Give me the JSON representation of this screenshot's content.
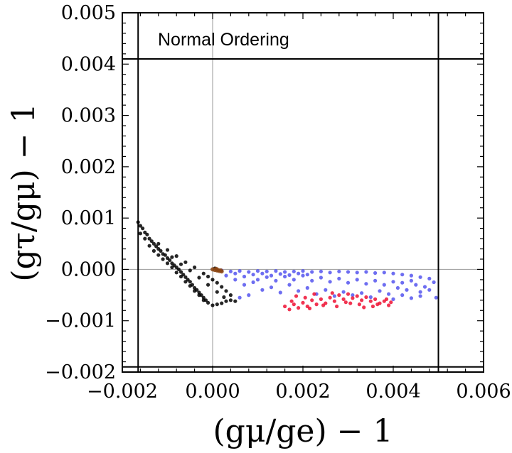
{
  "chart_data": {
    "type": "scatter",
    "title": "",
    "annotation": "Normal Ordering",
    "xlabel": "(gμ/ge) − 1",
    "ylabel": "(gτ/gμ) − 1",
    "xlim": [
      -0.002,
      0.006
    ],
    "ylim": [
      -0.002,
      0.005
    ],
    "x_ticks": [
      -0.002,
      0.0,
      0.002,
      0.004,
      0.006
    ],
    "x_tick_labels": [
      "−0.002",
      "0.000",
      "0.002",
      "0.004",
      "0.006"
    ],
    "y_ticks": [
      -0.002,
      -0.001,
      0.0,
      0.001,
      0.002,
      0.003,
      0.004,
      0.005
    ],
    "y_tick_labels": [
      "−0.002",
      "−0.001",
      "0.000",
      "0.001",
      "0.002",
      "0.003",
      "0.004",
      "0.005"
    ],
    "reference_lines": {
      "horizontal": [
        0.0
      ],
      "vertical": [
        0.0
      ]
    },
    "bound_lines": {
      "x_lower": -0.00165,
      "x_upper": 0.005,
      "y_upper": 0.0041,
      "y_lower": -0.0019
    },
    "series": [
      {
        "name": "black",
        "color": "#000000",
        "region": "wedge from (-0.0017, 0.0009) to (0.0005, -0.0007)",
        "points": [
          [
            -0.00165,
            0.00092
          ],
          [
            -0.0016,
            0.00085
          ],
          [
            -0.00155,
            0.0008
          ],
          [
            -0.0015,
            0.00072
          ],
          [
            -0.00145,
            0.00068
          ],
          [
            -0.0014,
            0.0006
          ],
          [
            -0.00135,
            0.00055
          ],
          [
            -0.0013,
            0.0005
          ],
          [
            -0.00125,
            0.00045
          ],
          [
            -0.0012,
            0.0004
          ],
          [
            -0.00115,
            0.00036
          ],
          [
            -0.0011,
            0.0003
          ],
          [
            -0.00105,
            0.00028
          ],
          [
            -0.001,
            0.00022
          ],
          [
            -0.00095,
            0.00018
          ],
          [
            -0.0009,
            0.00012
          ],
          [
            -0.00085,
            8e-05
          ],
          [
            -0.0008,
            4e-05
          ],
          [
            -0.00075,
            0.0
          ],
          [
            -0.0007,
            -5e-05
          ],
          [
            -0.00065,
            -0.0001
          ],
          [
            -0.0006,
            -0.00015
          ],
          [
            -0.00055,
            -0.0002
          ],
          [
            -0.0005,
            -0.00024
          ],
          [
            -0.00045,
            -0.0003
          ],
          [
            -0.0004,
            -0.00036
          ],
          [
            -0.00035,
            -0.0004
          ],
          [
            -0.0003,
            -0.00045
          ],
          [
            -0.00025,
            -0.0005
          ],
          [
            -0.0002,
            -0.00055
          ],
          [
            -0.00015,
            -0.0006
          ],
          [
            -0.0001,
            -0.00065
          ],
          [
            0.0,
            -0.0007
          ],
          [
            0.0001,
            -0.00068
          ],
          [
            0.0002,
            -0.00066
          ],
          [
            0.0003,
            -0.00062
          ],
          [
            0.0004,
            -0.0006
          ],
          [
            0.0005,
            -0.00062
          ],
          [
            -0.0016,
            0.0007
          ],
          [
            -0.0015,
            0.0006
          ],
          [
            -0.0014,
            0.00046
          ],
          [
            -0.0013,
            0.00036
          ],
          [
            -0.0012,
            0.00028
          ],
          [
            -0.0011,
            0.0002
          ],
          [
            -0.001,
            0.00012
          ],
          [
            -0.0009,
            4e-05
          ],
          [
            -0.0008,
            -6e-05
          ],
          [
            -0.0007,
            -0.00014
          ],
          [
            -0.0006,
            -0.00024
          ],
          [
            -0.0005,
            -0.00032
          ],
          [
            -0.0004,
            -0.00042
          ],
          [
            -0.0003,
            -0.0005
          ],
          [
            -0.0002,
            -0.0006
          ],
          [
            -0.0012,
            0.0005
          ],
          [
            -0.001,
            0.00038
          ],
          [
            -0.0008,
            0.00026
          ],
          [
            -0.0006,
            0.00014
          ],
          [
            -0.0004,
            4e-05
          ],
          [
            -0.0002,
            -8e-05
          ],
          [
            -0.0001,
            -0.00014
          ],
          [
            0.0,
            -0.0002
          ],
          [
            0.0001,
            -0.00026
          ],
          [
            0.0002,
            -0.00034
          ],
          [
            0.0003,
            -0.00042
          ],
          [
            0.0004,
            -0.0005
          ],
          [
            -0.0009,
            0.00024
          ],
          [
            -0.0007,
            0.0001
          ],
          [
            -0.0005,
            -2e-05
          ],
          [
            -0.0003,
            -0.00016
          ],
          [
            -0.0001,
            -0.0003
          ],
          [
            0.0001,
            -0.00044
          ],
          [
            0.00025,
            -0.00054
          ],
          [
            5e-05,
            2e-05
          ]
        ]
      },
      {
        "name": "blue",
        "color": "#5555ee",
        "region": "band x 0.0000 to 0.0050, y 0.0000 down to -0.0006",
        "points": [
          [
            0.0002,
            -2e-05
          ],
          [
            0.0004,
            -4e-05
          ],
          [
            0.0006,
            -3e-05
          ],
          [
            0.0008,
            -5e-05
          ],
          [
            0.001,
            -3e-05
          ],
          [
            0.0012,
            -4e-05
          ],
          [
            0.0014,
            -3e-05
          ],
          [
            0.0016,
            -5e-05
          ],
          [
            0.0018,
            -4e-05
          ],
          [
            0.002,
            -3e-05
          ],
          [
            0.0022,
            -5e-05
          ],
          [
            0.0024,
            -4e-05
          ],
          [
            0.0026,
            -6e-05
          ],
          [
            0.0028,
            -4e-05
          ],
          [
            0.003,
            -5e-05
          ],
          [
            0.0032,
            -6e-05
          ],
          [
            0.0034,
            -5e-05
          ],
          [
            0.0036,
            -7e-05
          ],
          [
            0.0038,
            -6e-05
          ],
          [
            0.004,
            -8e-05
          ],
          [
            0.0042,
            -0.0001
          ],
          [
            0.0044,
            -0.00012
          ],
          [
            0.0046,
            -0.00015
          ],
          [
            0.0048,
            -0.00018
          ],
          [
            0.0005,
            -0.0002
          ],
          [
            0.0007,
            -0.0003
          ],
          [
            0.0009,
            -0.00025
          ],
          [
            0.0011,
            -0.0004
          ],
          [
            0.0013,
            -0.00035
          ],
          [
            0.0015,
            -0.00045
          ],
          [
            0.0017,
            -0.0003
          ],
          [
            0.0019,
            -0.00042
          ],
          [
            0.0021,
            -0.00036
          ],
          [
            0.0023,
            -0.00048
          ],
          [
            0.0025,
            -0.0004
          ],
          [
            0.0027,
            -0.00052
          ],
          [
            0.0029,
            -0.00044
          ],
          [
            0.0031,
            -0.0005
          ],
          [
            0.0033,
            -0.00046
          ],
          [
            0.0035,
            -0.00054
          ],
          [
            0.0037,
            -0.00042
          ],
          [
            0.0039,
            -0.00048
          ],
          [
            0.0041,
            -0.00036
          ],
          [
            0.0043,
            -0.0004
          ],
          [
            0.0045,
            -0.0003
          ],
          [
            0.0047,
            -0.00034
          ],
          [
            0.0049,
            -0.00025
          ],
          [
            0.00495,
            -0.00055
          ],
          [
            0.0006,
            -0.00055
          ],
          [
            0.0008,
            -0.0005
          ],
          [
            0.001,
            -0.0002
          ],
          [
            0.0012,
            -0.00015
          ],
          [
            0.0014,
            -0.00022
          ],
          [
            0.0016,
            -0.00014
          ],
          [
            0.0018,
            -0.0002
          ],
          [
            0.002,
            -0.00012
          ],
          [
            0.0022,
            -0.00022
          ],
          [
            0.0024,
            -0.00016
          ],
          [
            0.0026,
            -0.00024
          ],
          [
            0.0028,
            -0.00018
          ],
          [
            0.003,
            -0.00026
          ],
          [
            0.0032,
            -0.0002
          ],
          [
            0.0034,
            -0.00028
          ],
          [
            0.0036,
            -0.00022
          ],
          [
            0.0038,
            -0.0003
          ],
          [
            0.004,
            -0.00024
          ],
          [
            0.0042,
            -0.00026
          ],
          [
            0.0044,
            -0.00022
          ],
          [
            0.0046,
            -0.00044
          ],
          [
            0.0048,
            -0.0004
          ],
          [
            0.0003,
            -0.00012
          ],
          [
            0.0005,
            -8e-05
          ],
          [
            0.0007,
            -0.00014
          ],
          [
            0.0009,
            -0.0001
          ],
          [
            0.0011,
            -8e-05
          ],
          [
            0.0013,
            -0.00012
          ],
          [
            0.0015,
            -9e-05
          ],
          [
            0.0017,
            -0.00011
          ],
          [
            0.0019,
            -8e-05
          ],
          [
            0.0021,
            -0.0001
          ],
          [
            0.004,
            -0.00058
          ],
          [
            0.0042,
            -0.0005
          ],
          [
            0.0044,
            -0.00056
          ],
          [
            0.0046,
            -0.00052
          ]
        ]
      },
      {
        "name": "red",
        "color": "#ee1133",
        "region": "cluster x 0.0015 to 0.0040, y -0.0004 to -0.0008",
        "points": [
          [
            0.0016,
            -0.00072
          ],
          [
            0.0017,
            -0.00078
          ],
          [
            0.0018,
            -0.00068
          ],
          [
            0.0019,
            -0.00075
          ],
          [
            0.002,
            -0.00065
          ],
          [
            0.0021,
            -0.00072
          ],
          [
            0.0022,
            -0.0006
          ],
          [
            0.0023,
            -0.00068
          ],
          [
            0.0024,
            -0.00058
          ],
          [
            0.0025,
            -0.00066
          ],
          [
            0.0026,
            -0.00055
          ],
          [
            0.0027,
            -0.00062
          ],
          [
            0.0028,
            -0.0005
          ],
          [
            0.0029,
            -0.00058
          ],
          [
            0.003,
            -0.00048
          ],
          [
            0.0031,
            -0.00056
          ],
          [
            0.0032,
            -0.00052
          ],
          [
            0.0033,
            -0.0006
          ],
          [
            0.0034,
            -0.00054
          ],
          [
            0.0035,
            -0.00062
          ],
          [
            0.0036,
            -0.00058
          ],
          [
            0.0037,
            -0.00066
          ],
          [
            0.0038,
            -0.00062
          ],
          [
            0.0039,
            -0.0007
          ],
          [
            0.00185,
            -0.00052
          ],
          [
            0.00205,
            -0.00055
          ],
          [
            0.00225,
            -0.00048
          ],
          [
            0.00265,
            -0.00046
          ],
          [
            0.00295,
            -0.00064
          ],
          [
            0.00325,
            -0.00068
          ],
          [
            0.00355,
            -0.00072
          ],
          [
            0.00385,
            -0.00058
          ],
          [
            0.00175,
            -0.00062
          ],
          [
            0.00215,
            -0.00076
          ],
          [
            0.00245,
            -0.0007
          ],
          [
            0.00275,
            -0.00072
          ],
          [
            0.00305,
            -0.00066
          ],
          [
            0.00335,
            -0.00074
          ],
          [
            0.00365,
            -0.00068
          ],
          [
            0.00395,
            -0.00064
          ]
        ]
      },
      {
        "name": "brown",
        "color": "#8b4513",
        "region": "small cluster near origin",
        "points": [
          [
            0.0,
            0.0
          ],
          [
            5e-05,
            -1e-05
          ],
          [
            0.0001,
            -2e-05
          ],
          [
            0.00015,
            -3e-05
          ],
          [
            0.0002,
            -4e-05
          ],
          [
            8e-05,
            1e-05
          ],
          [
            0.00012,
            -1e-05
          ],
          [
            0.00018,
            -2e-05
          ]
        ]
      }
    ]
  }
}
